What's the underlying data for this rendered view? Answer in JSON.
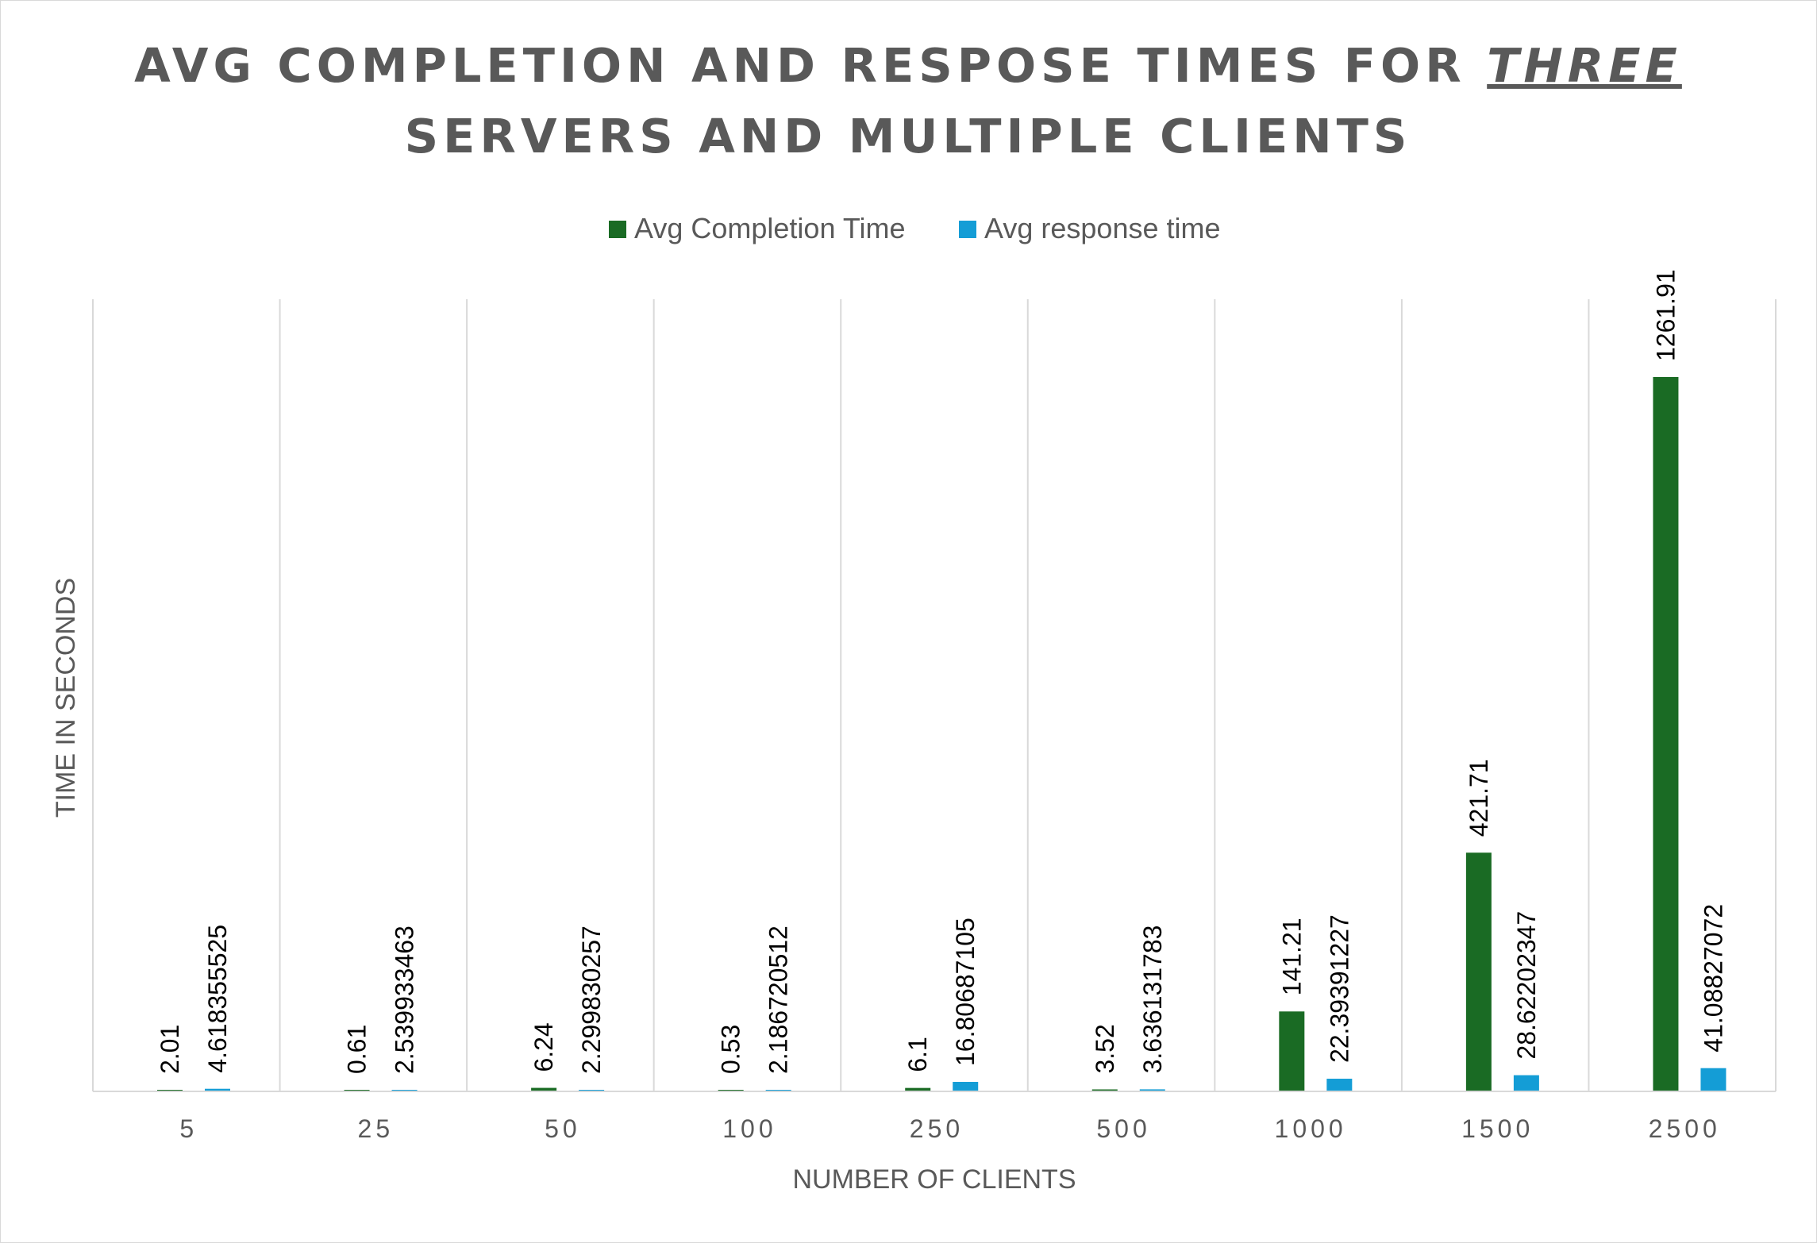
{
  "chart_data": {
    "type": "bar",
    "title_parts": [
      {
        "text": "AVG COMPLETION AND RESPOSE TIMES FOR ",
        "emphasis": false
      },
      {
        "text": "THREE",
        "emphasis": true
      },
      {
        "text": "SERVERS AND MULTIPLE CLIENTS",
        "emphasis": false
      }
    ],
    "xlabel": "NUMBER OF CLIENTS",
    "ylabel": "TIME IN SECONDS",
    "categories": [
      "5",
      "25",
      "50",
      "100",
      "250",
      "500",
      "1000",
      "1500",
      "2500"
    ],
    "series": [
      {
        "name": "Avg Completion Time",
        "color": "#1a6b24",
        "values": [
          2.01,
          0.61,
          6.24,
          0.53,
          6.1,
          3.52,
          141.21,
          421.71,
          1261.91
        ],
        "labels": [
          "2.01",
          "0.61",
          "6.24",
          "0.53",
          "6.1",
          "3.52",
          "141.21",
          "421.71",
          "1261.91"
        ]
      },
      {
        "name": "Avg response time",
        "color": "#149dd6",
        "values": [
          4.618355525,
          2.539933463,
          2.299830257,
          2.186720512,
          16.80687105,
          3.636131783,
          22.39391227,
          28.62202347,
          41.08827072
        ],
        "labels": [
          "4.618355525",
          "2.539933463",
          "2.299830257",
          "2.186720512",
          "16.80687105",
          "3.636131783",
          "22.39391227",
          "28.62202347",
          "41.08827072"
        ]
      }
    ],
    "ylim": [
      0,
      1400
    ],
    "grid": "vertical",
    "legend_position": "top",
    "data_label_rotation": "vertical"
  }
}
